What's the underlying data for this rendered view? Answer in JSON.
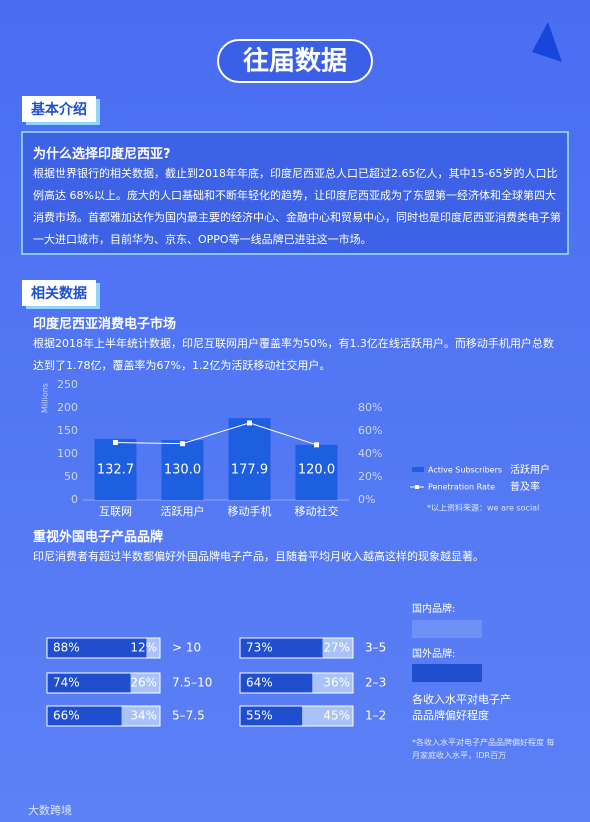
{
  "header": {
    "title": "往届数据"
  },
  "intro": {
    "heading": "基本介绍",
    "box_title": "为什么选择印度尼西亚?",
    "text": "根据世界银行的相关数据，截止到2018年年底，印度尼西亚总人口已超过2.65亿人，其中15-65岁的人口比例高达 68%以上。庞大的人口基础和不断年轻化的趋势，让印度尼西亚成为了东盟第一经济体和全球第四大消费市场。首都雅加达作为国内最主要的经济中心、金融中心和贸易中心，同时也是印度尼西亚消费类电子第一大进口城市，目前华为、京东、OPPO等一线品牌已进驻这一市场。"
  },
  "data_section": {
    "heading": "相关数据",
    "market_title": "印度尼西亚消费电子市场",
    "market_text": "根据2018年上半年统计数据，印尼互联网用户覆盖率为50%，有1.3亿在线活跃用户。而移动手机用户总数达到了1.78亿，覆盖率为67%，1.2亿为活跃移动社交用户。",
    "brand_title": "重视外国电子产品品牌",
    "brand_text": "印尼消费者有超过半数都偏好外国品牌电子产品，且随着平均月收入越高这样的现象越显著。"
  },
  "chart_data": [
    {
      "type": "bar_line",
      "y_label": "Millions",
      "categories": [
        "互联网",
        "活跃用户",
        "移动手机",
        "移动社交"
      ],
      "series": [
        {
          "name": "Active Subscribers",
          "name_cn": "活跃用户",
          "color": "#1e5ee0",
          "values": [
            132.7,
            130.0,
            177.9,
            120.0
          ],
          "value_labels": [
            "132.7",
            "130.0",
            "177.9",
            "120.0"
          ]
        },
        {
          "name": "Penetration Rate",
          "name_cn": "普及率",
          "color": "#ffffff",
          "axis": "y2",
          "values": [
            50,
            49,
            67,
            48
          ]
        }
      ],
      "ylim": [
        0,
        250
      ],
      "yticks": [
        0,
        50,
        100,
        150,
        200,
        250
      ],
      "y2lim": [
        0,
        100
      ],
      "y2ticks": [
        {
          "value": 0,
          "label": "0%"
        },
        {
          "value": 20,
          "label": "20%"
        },
        {
          "value": 40,
          "label": "40%"
        },
        {
          "value": 60,
          "label": "60%"
        },
        {
          "value": 80,
          "label": "80%"
        }
      ],
      "note": "*以上资料来源：we are social"
    },
    {
      "type": "stacked_bar",
      "title": "各收入水平对电子产品品牌偏好程度",
      "categories": [
        "> 10",
        "7.5–10",
        "5–7.5",
        "3–5",
        "2–3",
        "1–2"
      ],
      "series": [
        {
          "name": "国内品牌:",
          "color": "#a9c3f8",
          "values": [
            12,
            26,
            34,
            27,
            36,
            45
          ],
          "value_labels": [
            "12%",
            "26%",
            "34%",
            "27%",
            "36%",
            "45%"
          ]
        },
        {
          "name": "国外品牌:",
          "color": "#1f4fcf",
          "values": [
            88,
            74,
            66,
            73,
            64,
            55
          ],
          "value_labels": [
            "88%",
            "74%",
            "66%",
            "73%",
            "64%",
            "55%"
          ]
        }
      ],
      "xlim": [
        0,
        100
      ],
      "note": "*各收入水平对电子产品品牌偏好程度 每月家庭收入水平，IDR百万"
    }
  ],
  "footer": {
    "brand": "大数跨境"
  }
}
